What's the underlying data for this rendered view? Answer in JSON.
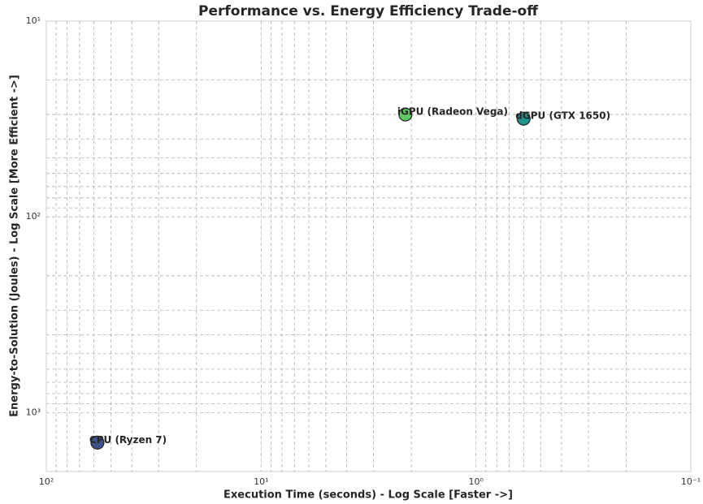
{
  "chart_data": {
    "type": "scatter",
    "title": "Performance vs. Energy Efficiency Trade-off",
    "x_label": "Execution Time (seconds) - Log Scale [Faster ->]",
    "y_label": "Energy-to-Solution (Joules) - Log Scale [More Efficient ->]",
    "series": [
      {
        "name": "CPU (Ryzen 7)",
        "color": "#3b528b",
        "x": [
          57.8
        ],
        "values": [
          1423
        ]
      },
      {
        "name": "iGPU (Radeon Vega)",
        "color": "#5ec962",
        "x": [
          2.13
        ],
        "values": [
          30
        ]
      },
      {
        "name": "dGPU (GTX 1650)",
        "color": "#21918c",
        "x": [
          0.6
        ],
        "values": [
          31.5
        ]
      }
    ],
    "xlim": [
      100,
      0.1
    ],
    "ylim": [
      10,
      2000
    ],
    "xticks": [
      {
        "value": 100,
        "label": "10²"
      },
      {
        "value": 10,
        "label": "10¹"
      },
      {
        "value": 1,
        "label": "10⁰"
      },
      {
        "value": 0.1,
        "label": "10⁻¹"
      }
    ],
    "yticks": [
      {
        "value": 10,
        "label": "10¹"
      },
      {
        "value": 100,
        "label": "10²"
      },
      {
        "value": 1000,
        "label": "10³"
      }
    ],
    "xminor": [
      0.2,
      0.3,
      0.4,
      0.5,
      0.6,
      0.7,
      0.8,
      0.9,
      2,
      3,
      4,
      5,
      6,
      7,
      8,
      9,
      20,
      30,
      40,
      50,
      60,
      70,
      80,
      90
    ],
    "yminor": [
      20,
      30,
      40,
      50,
      60,
      70,
      80,
      90,
      200,
      300,
      400,
      500,
      600,
      700,
      800,
      900
    ],
    "xscale": "log",
    "yscale": "log",
    "grid": true
  }
}
